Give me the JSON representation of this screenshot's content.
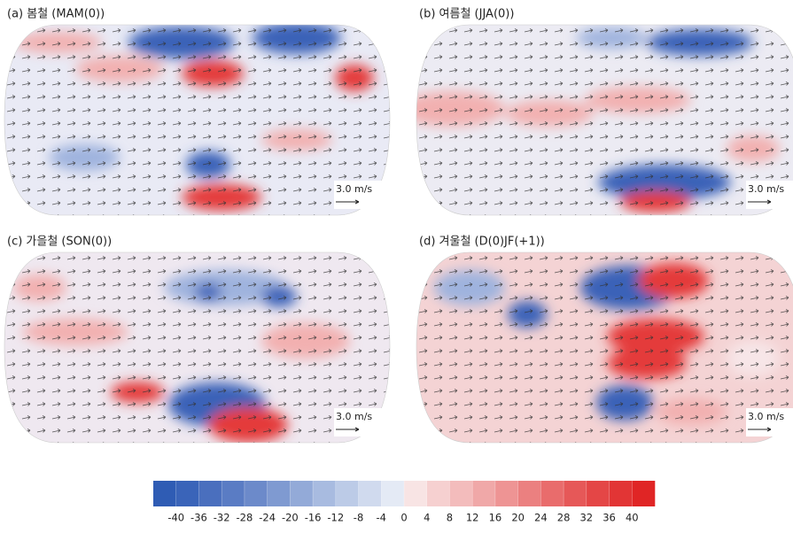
{
  "panels": [
    {
      "title": "(a) 봄철 (MAM(0))",
      "scale_label": "3.0 m/s"
    },
    {
      "title": "(b) 여름철 (JJA(0))",
      "scale_label": "3.0 m/s"
    },
    {
      "title": "(c) 가을철 (SON(0))",
      "scale_label": "3.0 m/s"
    },
    {
      "title": "(d) 겨울철 (D(0)JF(+1))",
      "scale_label": "3.0 m/s"
    }
  ],
  "colorbar": {
    "ticks": [
      -40,
      -36,
      -32,
      -28,
      -24,
      -20,
      -16,
      -12,
      -8,
      -4,
      0,
      4,
      8,
      12,
      16,
      20,
      24,
      28,
      32,
      36,
      40
    ],
    "colors": [
      "#2f5cb4",
      "#3a64b9",
      "#4a6fbe",
      "#5a7cc4",
      "#6c8aca",
      "#7f9ad1",
      "#93aad8",
      "#a8bbe0",
      "#bccbe7",
      "#d0daee",
      "#e4eaf5",
      "#f8e4e4",
      "#f6d0d0",
      "#f3bcbc",
      "#f0a8a8",
      "#ee9494",
      "#eb8080",
      "#e96c6c",
      "#e65858",
      "#e44646",
      "#e23535",
      "#e02525"
    ]
  }
}
